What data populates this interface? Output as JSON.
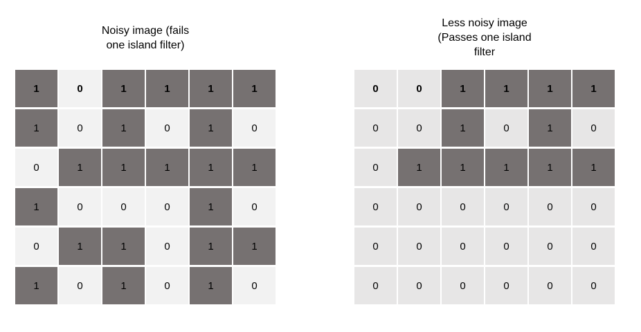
{
  "left_panel": {
    "title": "Noisy image (fails\none island filter)",
    "grid": [
      [
        "1",
        "0",
        "1",
        "1",
        "1",
        "1"
      ],
      [
        "1",
        "0",
        "1",
        "0",
        "1",
        "0"
      ],
      [
        "0",
        "1",
        "1",
        "1",
        "1",
        "1"
      ],
      [
        "1",
        "0",
        "0",
        "0",
        "1",
        "0"
      ],
      [
        "0",
        "1",
        "1",
        "0",
        "1",
        "1"
      ],
      [
        "1",
        "0",
        "1",
        "0",
        "1",
        "0"
      ]
    ]
  },
  "right_panel": {
    "title": "Less noisy image\n(Passes one island\nfilter",
    "grid": [
      [
        "0",
        "0",
        "1",
        "1",
        "1",
        "1"
      ],
      [
        "0",
        "0",
        "1",
        "0",
        "1",
        "0"
      ],
      [
        "0",
        "1",
        "1",
        "1",
        "1",
        "1"
      ],
      [
        "0",
        "0",
        "0",
        "0",
        "0",
        "0"
      ],
      [
        "0",
        "0",
        "0",
        "0",
        "0",
        "0"
      ],
      [
        "0",
        "0",
        "0",
        "0",
        "0",
        "0"
      ]
    ]
  },
  "colors": {
    "filled_cell": "#767171",
    "left_empty_cell": "#f2f2f2",
    "right_empty_cell": "#e7e6e6"
  }
}
